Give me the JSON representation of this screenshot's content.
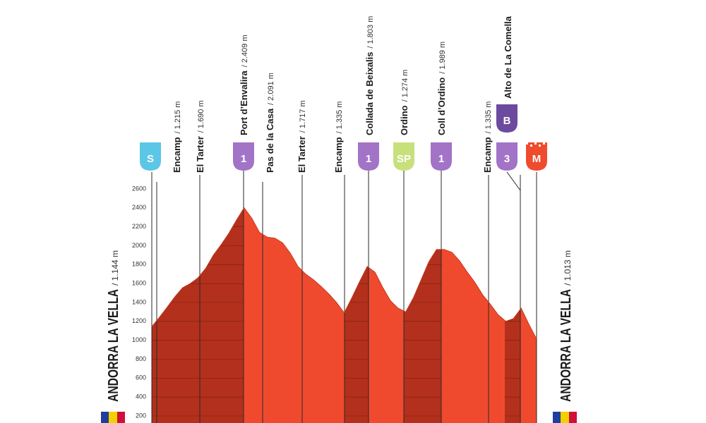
{
  "chart_data": {
    "type": "area",
    "ylim": [
      200,
      2600
    ],
    "yticks": [
      200,
      400,
      600,
      800,
      1000,
      1200,
      1400,
      1600,
      1800,
      2000,
      2200,
      2400,
      2600
    ],
    "grid": true,
    "colors": {
      "descent": "#f04a2e",
      "climb": "#b3301c",
      "grid": "#7a1c10",
      "marker": "#2a2a2a"
    },
    "values": [
      1144,
      1244,
      1350,
      1460,
      1555,
      1600,
      1660,
      1760,
      1900,
      2010,
      2130,
      2270,
      2400,
      2290,
      2140,
      2090,
      2080,
      2030,
      1920,
      1780,
      1700,
      1640,
      1570,
      1490,
      1400,
      1290,
      1450,
      1620,
      1780,
      1720,
      1560,
      1420,
      1340,
      1300,
      1450,
      1640,
      1830,
      1960,
      1960,
      1930,
      1840,
      1720,
      1610,
      1480,
      1380,
      1270,
      1200,
      1230,
      1340,
      1170,
      1013
    ],
    "start": {
      "name": "ANDORRA LA VELLA",
      "elevation": "/ 1.144 m",
      "badges": [
        {
          "label": "S",
          "color": "#5cc6e6"
        }
      ]
    },
    "finish": {
      "name": "ANDORRA LA VELLA",
      "elevation": "/ 1.013 m",
      "badges": [
        {
          "label": "M",
          "color": "#ef4b2e"
        }
      ]
    },
    "waypoints": [
      {
        "name": "Encamp",
        "elevation": "/ 1.215 m"
      },
      {
        "name": "El Tarter",
        "elevation": "/ 1.690 m"
      },
      {
        "name": "Port d’Envalira",
        "elevation": "/ 2.409 m",
        "badges": [
          {
            "label": "1",
            "color": "#a273c6"
          }
        ]
      },
      {
        "name": "Pas de la Casa",
        "elevation": "/ 2.091 m"
      },
      {
        "name": "El Tarter",
        "elevation": "/ 1.717 m"
      },
      {
        "name": "Encamp",
        "elevation": "/ 1.335 m"
      },
      {
        "name": "Collada de Beixalis",
        "elevation": "/ 1.803 m",
        "badges": [
          {
            "label": "1",
            "color": "#a273c6"
          }
        ]
      },
      {
        "name": "Ordino",
        "elevation": "/ 1.274 m",
        "badges": [
          {
            "label": "SP",
            "color": "#c8e07c"
          }
        ]
      },
      {
        "name": "Coll d’Ordino",
        "elevation": "/ 1.989 m",
        "badges": [
          {
            "label": "1",
            "color": "#a273c6"
          }
        ]
      },
      {
        "name": "Encamp",
        "elevation": "/ 1.335 m"
      },
      {
        "name": "Alto de La Comella",
        "badges": [
          {
            "label": "B",
            "color": "#6c4b9e"
          },
          {
            "label": "3",
            "color": "#a273c6"
          }
        ]
      }
    ]
  }
}
